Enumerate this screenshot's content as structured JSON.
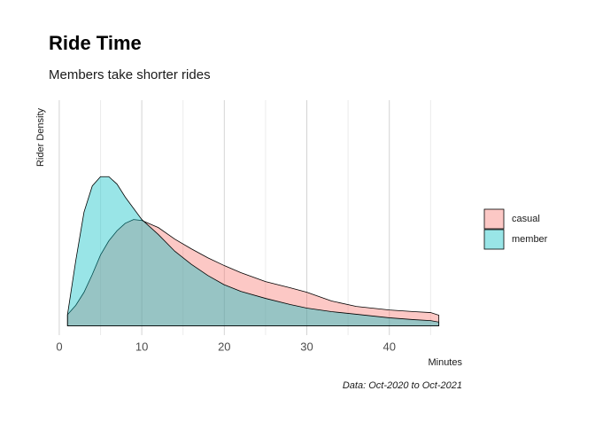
{
  "chart_data": {
    "type": "density",
    "title": "Ride Time",
    "subtitle": "Members take shorter rides",
    "caption": "Data: Oct-2020 to Oct-2021",
    "x_label": "Minutes",
    "y_label": "Rider Density",
    "x": [
      1,
      2,
      3,
      4,
      5,
      6,
      7,
      8,
      9,
      10,
      12,
      14,
      16,
      18,
      20,
      22,
      25,
      28,
      30,
      33,
      36,
      40,
      43,
      45,
      46
    ],
    "series": [
      {
        "name": "casual",
        "color": "#F8766D",
        "values": [
          0.006,
          0.011,
          0.018,
          0.0275,
          0.038,
          0.0455,
          0.051,
          0.055,
          0.057,
          0.0565,
          0.0527,
          0.0465,
          0.0413,
          0.0365,
          0.0323,
          0.0285,
          0.0237,
          0.0204,
          0.018,
          0.0133,
          0.0104,
          0.0085,
          0.0076,
          0.0071,
          0.0057
        ]
      },
      {
        "name": "member",
        "color": "#00BFC4",
        "values": [
          0.006,
          0.035,
          0.061,
          0.075,
          0.08,
          0.08,
          0.076,
          0.069,
          0.063,
          0.057,
          0.049,
          0.04,
          0.033,
          0.027,
          0.022,
          0.0185,
          0.0147,
          0.0114,
          0.0095,
          0.0076,
          0.0062,
          0.0043,
          0.0033,
          0.0028,
          0.002
        ]
      }
    ],
    "xlim": [
      -2.3,
      48.4
    ],
    "ylim": [
      -0.005,
      0.121
    ],
    "xticks": [
      0,
      10,
      20,
      30,
      40
    ],
    "minor_xticks": [
      5,
      15,
      25,
      35,
      45
    ],
    "grid": true
  }
}
